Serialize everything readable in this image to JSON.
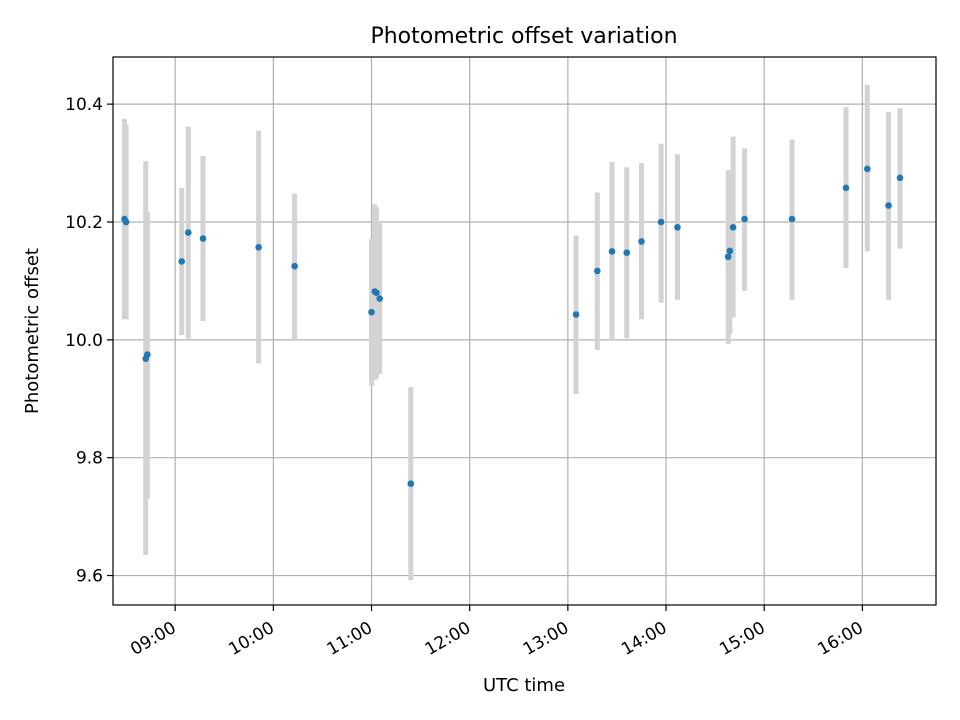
{
  "chart_data": {
    "type": "scatter",
    "title": "Photometric offset variation",
    "xlabel": "UTC time",
    "ylabel": "Photometric offset",
    "xlim": [
      "08:22",
      "16:45"
    ],
    "ylim": [
      9.55,
      10.48
    ],
    "x_ticks": [
      "09:00",
      "10:00",
      "11:00",
      "12:00",
      "13:00",
      "14:00",
      "15:00",
      "16:00"
    ],
    "y_ticks": [
      9.6,
      9.8,
      10.0,
      10.2,
      10.4
    ],
    "grid": true,
    "marker_color": "#1f77b4",
    "errorbar_color": "#d3d3d3",
    "points": [
      {
        "t": "08:29",
        "y": 10.205,
        "lo": 10.035,
        "hi": 10.375
      },
      {
        "t": "08:30",
        "y": 10.2,
        "lo": 10.035,
        "hi": 10.365
      },
      {
        "t": "08:42",
        "y": 9.968,
        "lo": 9.635,
        "hi": 10.303
      },
      {
        "t": "08:43",
        "y": 9.975,
        "lo": 9.73,
        "hi": 10.218
      },
      {
        "t": "09:04",
        "y": 10.133,
        "lo": 10.008,
        "hi": 10.258
      },
      {
        "t": "09:08",
        "y": 10.182,
        "lo": 10.002,
        "hi": 10.362
      },
      {
        "t": "09:17",
        "y": 10.172,
        "lo": 10.032,
        "hi": 10.312
      },
      {
        "t": "09:51",
        "y": 10.157,
        "lo": 9.96,
        "hi": 10.355
      },
      {
        "t": "10:13",
        "y": 10.125,
        "lo": 10.0,
        "hi": 10.248
      },
      {
        "t": "11:00",
        "y": 10.047,
        "lo": 9.922,
        "hi": 10.172
      },
      {
        "t": "11:02",
        "y": 10.082,
        "lo": 9.932,
        "hi": 10.23
      },
      {
        "t": "11:03",
        "y": 10.08,
        "lo": 9.935,
        "hi": 10.225
      },
      {
        "t": "11:05",
        "y": 10.07,
        "lo": 9.942,
        "hi": 10.198
      },
      {
        "t": "11:24",
        "y": 9.756,
        "lo": 9.592,
        "hi": 9.92
      },
      {
        "t": "13:05",
        "y": 10.043,
        "lo": 9.908,
        "hi": 10.177
      },
      {
        "t": "13:18",
        "y": 10.117,
        "lo": 9.983,
        "hi": 10.25
      },
      {
        "t": "13:27",
        "y": 10.15,
        "lo": 10.0,
        "hi": 10.302
      },
      {
        "t": "13:36",
        "y": 10.148,
        "lo": 10.003,
        "hi": 10.293
      },
      {
        "t": "13:45",
        "y": 10.167,
        "lo": 10.035,
        "hi": 10.3
      },
      {
        "t": "13:57",
        "y": 10.2,
        "lo": 10.063,
        "hi": 10.333
      },
      {
        "t": "14:07",
        "y": 10.191,
        "lo": 10.068,
        "hi": 10.315
      },
      {
        "t": "14:38",
        "y": 10.141,
        "lo": 9.993,
        "hi": 10.288
      },
      {
        "t": "14:39",
        "y": 10.151,
        "lo": 10.01,
        "hi": 10.282
      },
      {
        "t": "14:41",
        "y": 10.191,
        "lo": 10.038,
        "hi": 10.345
      },
      {
        "t": "14:48",
        "y": 10.205,
        "lo": 10.083,
        "hi": 10.325
      },
      {
        "t": "15:17",
        "y": 10.205,
        "lo": 10.068,
        "hi": 10.34
      },
      {
        "t": "15:50",
        "y": 10.258,
        "lo": 10.122,
        "hi": 10.395
      },
      {
        "t": "16:03",
        "y": 10.29,
        "lo": 10.15,
        "hi": 10.433
      },
      {
        "t": "16:16",
        "y": 10.228,
        "lo": 10.068,
        "hi": 10.387
      },
      {
        "t": "16:23",
        "y": 10.275,
        "lo": 10.155,
        "hi": 10.393
      }
    ]
  }
}
